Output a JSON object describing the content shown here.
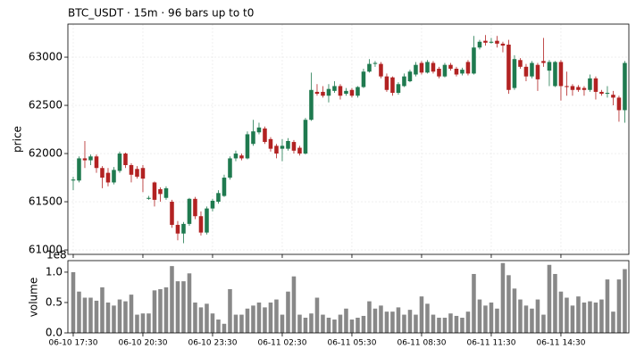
{
  "chart_data": {
    "type": "candlestick",
    "title": "BTC_USDT  ·  15m  ·  96 bars up to t0",
    "ylabel": "price",
    "volume_ylabel": "volume",
    "volume_offset": "1e8",
    "up_color": "#1f7a4f",
    "down_color": "#b22222",
    "volume_color": "#888888",
    "grid": true,
    "xlim": [
      -0.92,
      95.7
    ],
    "xticks": [
      {
        "value": 0,
        "label": "06-10 17:30"
      },
      {
        "value": 12,
        "label": "06-10 20:30"
      },
      {
        "value": 24,
        "label": "06-10 23:30"
      },
      {
        "value": 36,
        "label": "06-11 02:30"
      },
      {
        "value": 48,
        "label": "06-11 05:30"
      },
      {
        "value": 60,
        "label": "06-11 08:30"
      },
      {
        "value": 72,
        "label": "06-11 11:30"
      },
      {
        "value": 84,
        "label": "06-11 14:30"
      }
    ],
    "ylim": [
      60954,
      63343
    ],
    "yticks": [
      61000,
      61500,
      62000,
      62500,
      63000
    ],
    "volume_ylim": [
      0,
      1.19
    ],
    "volume_yticks": [
      {
        "value": 0,
        "label": "0.0"
      },
      {
        "value": 0.5,
        "label": "0.5"
      },
      {
        "value": 1,
        "label": "1.0"
      }
    ],
    "open": [
      61720,
      61720,
      61950,
      61930,
      61970,
      61850,
      61800,
      61700,
      61820,
      62000,
      61880,
      61840,
      61850,
      61530,
      61700,
      61630,
      61540,
      61500,
      61260,
      61170,
      61270,
      61530,
      61350,
      61180,
      61430,
      61500,
      61560,
      61750,
      61950,
      61980,
      61950,
      62100,
      62220,
      62260,
      62150,
      62080,
      62050,
      62050,
      62120,
      62060,
      62000,
      62350,
      62640,
      62640,
      62600,
      62650,
      62700,
      62620,
      62660,
      62600,
      62690,
      62850,
      62930,
      62930,
      62800,
      62790,
      62630,
      62700,
      62750,
      62820,
      62940,
      62840,
      62940,
      62880,
      62800,
      62920,
      62880,
      62830,
      62950,
      62830,
      63100,
      63170,
      63150,
      63170,
      63140,
      63130,
      62680,
      62970,
      62900,
      62800,
      62920,
      62960,
      62860,
      62700,
      62950,
      62700,
      62700,
      62690,
      62680,
      62660,
      62780,
      62640,
      62620,
      62610,
      62580,
      62450
    ],
    "high": [
      61760,
      61970,
      62130,
      61990,
      61990,
      61870,
      61850,
      61860,
      62020,
      62010,
      61900,
      61870,
      61880,
      61560,
      61710,
      61650,
      61660,
      61520,
      61300,
      61290,
      61540,
      61550,
      61400,
      61450,
      61530,
      61620,
      61780,
      61970,
      62030,
      62000,
      62230,
      62350,
      62320,
      62280,
      62170,
      62100,
      62150,
      62160,
      62140,
      62080,
      62370,
      62840,
      62720,
      62700,
      62720,
      62750,
      62720,
      62680,
      62680,
      62700,
      62880,
      62980,
      62960,
      62950,
      62830,
      62800,
      62740,
      62830,
      62870,
      62950,
      62960,
      62970,
      62960,
      62900,
      62940,
      62940,
      62900,
      62890,
      62970,
      63220,
      63180,
      63230,
      63200,
      63220,
      63160,
      63180,
      63020,
      62990,
      62930,
      62960,
      62940,
      63200,
      62970,
      62960,
      62970,
      62850,
      62720,
      62710,
      62700,
      62820,
      62800,
      62660,
      62700,
      62650,
      62600,
      62960
    ],
    "low": [
      61620,
      61700,
      61850,
      61880,
      61800,
      61640,
      61660,
      61680,
      61800,
      61850,
      61700,
      61740,
      61600,
      61520,
      61450,
      61500,
      61520,
      61230,
      61100,
      61070,
      61250,
      61320,
      61150,
      61160,
      61400,
      61480,
      61550,
      61730,
      61920,
      61930,
      61940,
      62080,
      62200,
      62100,
      62020,
      61950,
      61920,
      62030,
      62000,
      61980,
      61990,
      62340,
      62600,
      62580,
      62530,
      62630,
      62560,
      62600,
      62580,
      62580,
      62680,
      62840,
      62900,
      62780,
      62640,
      62600,
      62610,
      62690,
      62740,
      62800,
      62820,
      62830,
      62830,
      62780,
      62790,
      62860,
      62800,
      62810,
      62810,
      62820,
      63080,
      63120,
      63140,
      63100,
      63050,
      62620,
      62660,
      62880,
      62750,
      62780,
      62650,
      62900,
      62700,
      62690,
      62550,
      62600,
      62600,
      62640,
      62600,
      62640,
      62560,
      62600,
      62580,
      62500,
      62330,
      62320
    ],
    "close": [
      61730,
      61950,
      61930,
      61970,
      61850,
      61750,
      61700,
      61830,
      62000,
      61880,
      61780,
      61760,
      61740,
      61540,
      61520,
      61580,
      61640,
      61260,
      61170,
      61270,
      61530,
      61350,
      61180,
      61430,
      61510,
      61590,
      61750,
      61950,
      62000,
      61950,
      62200,
      62230,
      62270,
      62120,
      62050,
      62000,
      62080,
      62130,
      62030,
      62000,
      62350,
      62660,
      62620,
      62600,
      62670,
      62700,
      62600,
      62650,
      62600,
      62690,
      62850,
      62930,
      62940,
      62800,
      62660,
      62630,
      62720,
      62800,
      62850,
      62920,
      62840,
      62950,
      62850,
      62800,
      62920,
      62880,
      62820,
      62870,
      62830,
      63100,
      63160,
      63150,
      63160,
      63140,
      63120,
      62660,
      62980,
      62900,
      62800,
      62940,
      62770,
      62940,
      62950,
      62950,
      62700,
      62690,
      62660,
      62660,
      62660,
      62780,
      62640,
      62620,
      62630,
      62580,
      62450,
      62940
    ],
    "volume": [
      1.0,
      0.68,
      0.58,
      0.58,
      0.53,
      0.75,
      0.5,
      0.45,
      0.55,
      0.52,
      0.63,
      0.3,
      0.32,
      0.32,
      0.7,
      0.72,
      0.75,
      1.1,
      0.85,
      0.85,
      0.98,
      0.5,
      0.42,
      0.48,
      0.32,
      0.22,
      0.15,
      0.72,
      0.3,
      0.3,
      0.4,
      0.45,
      0.5,
      0.42,
      0.5,
      0.55,
      0.3,
      0.68,
      0.93,
      0.3,
      0.25,
      0.32,
      0.58,
      0.3,
      0.25,
      0.22,
      0.3,
      0.4,
      0.22,
      0.25,
      0.28,
      0.52,
      0.4,
      0.45,
      0.35,
      0.35,
      0.42,
      0.3,
      0.38,
      0.3,
      0.6,
      0.48,
      0.3,
      0.25,
      0.25,
      0.32,
      0.28,
      0.25,
      0.35,
      0.97,
      0.55,
      0.45,
      0.5,
      0.4,
      1.15,
      0.95,
      0.73,
      0.55,
      0.45,
      0.4,
      0.55,
      0.3,
      1.12,
      0.97,
      0.68,
      0.58,
      0.45,
      0.6,
      0.5,
      0.52,
      0.5,
      0.55,
      0.88,
      0.35,
      0.88,
      1.05
    ]
  }
}
